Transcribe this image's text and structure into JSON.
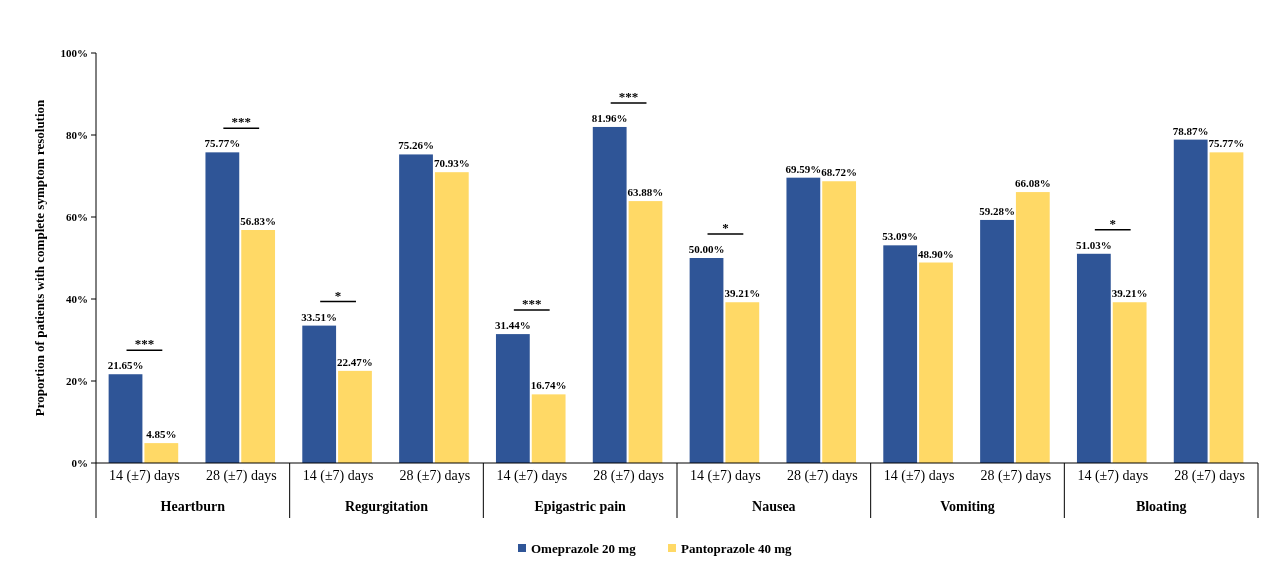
{
  "chart_data": {
    "type": "bar",
    "ylabel": "Proportion of patients with complete symptom resolution",
    "categories": [
      "14 (±7) days",
      "28 (±7) days",
      "14 (±7) days",
      "28 (±7) days",
      "14 (±7) days",
      "28 (±7) days",
      "14 (±7) days",
      "28 (±7) days",
      "14 (±7) days",
      "28 (±7) days",
      "14 (±7) days",
      "28 (±7) days"
    ],
    "series": [
      {
        "name": "Omeprazole 20 mg",
        "color": "#2f5597",
        "values": [
          21.65,
          75.77,
          33.51,
          75.26,
          31.44,
          81.96,
          50.0,
          69.59,
          53.09,
          59.28,
          51.03,
          78.87
        ],
        "value_labels": [
          "21.65%",
          "75.77%",
          "33.51%",
          "75.26%",
          "31.44%",
          "81.96%",
          "50.00%",
          "69.59%",
          "53.09%",
          "59.28%",
          "51.03%",
          "78.87%"
        ]
      },
      {
        "name": "Pantoprazole 40 mg",
        "color": "#ffd966",
        "values": [
          4.85,
          56.83,
          22.47,
          70.93,
          16.74,
          63.88,
          39.21,
          68.72,
          48.9,
          66.08,
          39.21,
          75.77
        ],
        "value_labels": [
          "4.85%",
          "56.83%",
          "22.47%",
          "70.93%",
          "16.74%",
          "63.88%",
          "39.21%",
          "68.72%",
          "48.90%",
          "66.08%",
          "39.21%",
          "75.77%"
        ]
      }
    ],
    "ylim": [
      0,
      100
    ],
    "yticks": [
      {
        "value": 0,
        "label": "0%"
      },
      {
        "value": 20,
        "label": "20%"
      },
      {
        "value": 40,
        "label": "40%"
      },
      {
        "value": 60,
        "label": "60%"
      },
      {
        "value": 80,
        "label": "80%"
      },
      {
        "value": 100,
        "label": "100%"
      }
    ],
    "annotations": [
      "Heartburn",
      "Regurgitation",
      "Epigastric pain",
      "Nausea",
      "Vomiting",
      "Bloating",
      "***",
      "***",
      "*",
      "***",
      "***",
      "*",
      "*"
    ],
    "legend": "bottom",
    "grid": false
  }
}
